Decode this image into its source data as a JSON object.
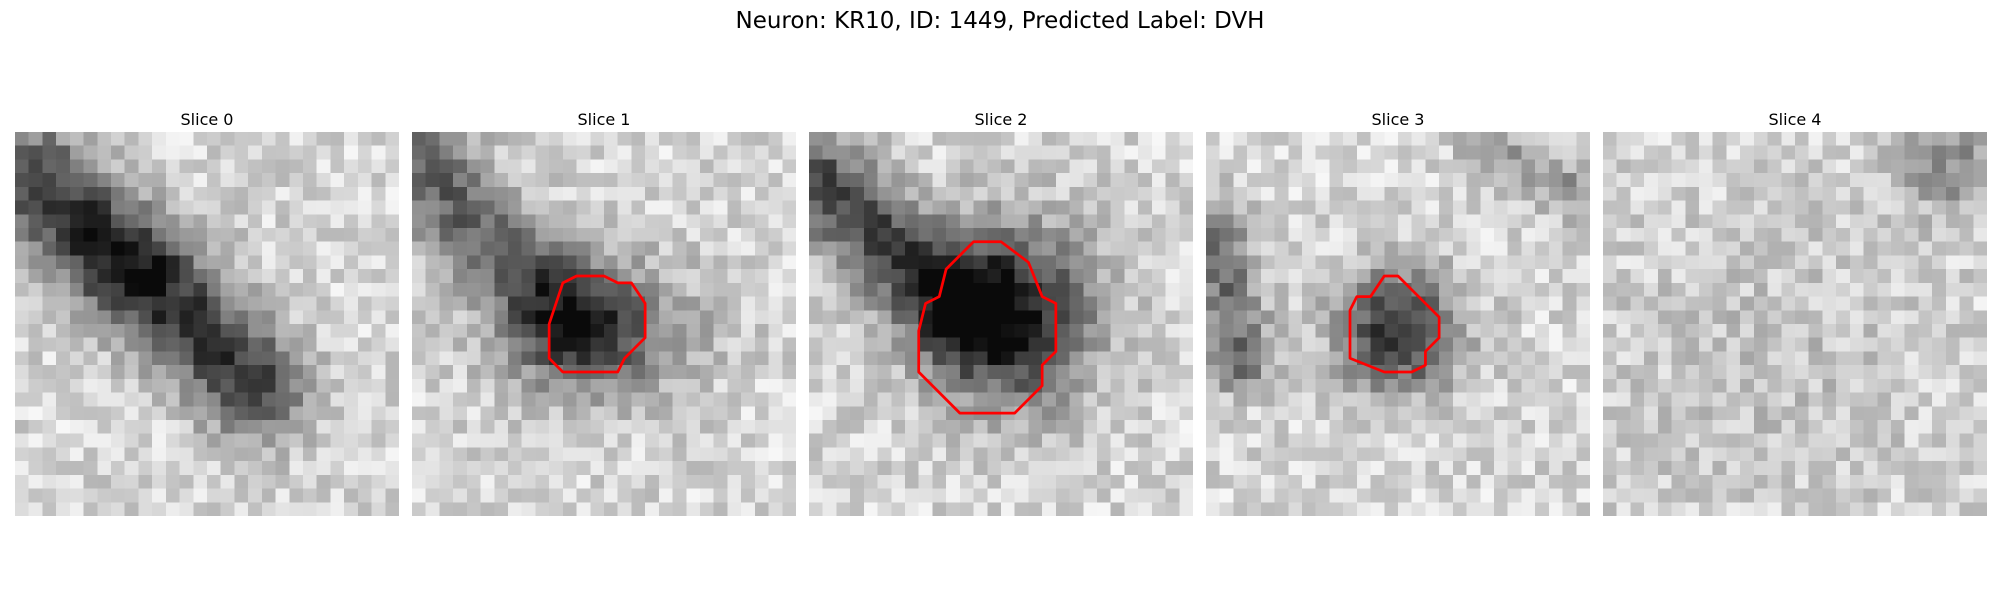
{
  "figure": {
    "title": "Neuron: KR10, ID: 1449, Predicted Label: DVH",
    "panels": [
      {
        "title": "Slice 0",
        "contour": false
      },
      {
        "title": "Slice 1",
        "contour": true
      },
      {
        "title": "Slice 2",
        "contour": true
      },
      {
        "title": "Slice 3",
        "contour": true
      },
      {
        "title": "Slice 4",
        "contour": false
      }
    ],
    "contour_color": "#ff0000",
    "colormap": "grayscale"
  }
}
